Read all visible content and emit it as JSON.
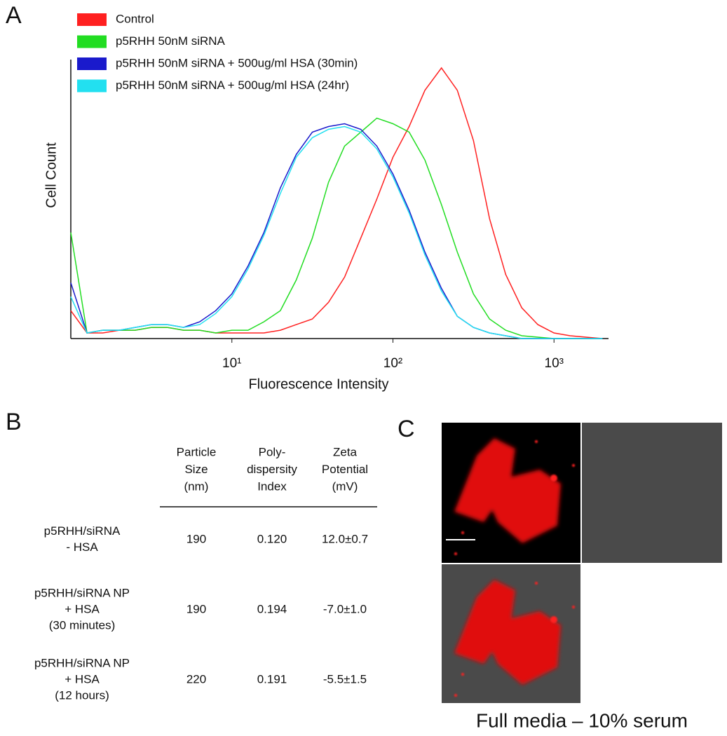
{
  "panels": {
    "a": "A",
    "b": "B",
    "c": "C"
  },
  "chart_data": {
    "type": "line",
    "x_label": "Fluorescence Intensity",
    "y_label": "Cell Count",
    "xscale": "log",
    "xlim": [
      1,
      2180
    ],
    "xticks": [
      {
        "value": 10,
        "label": "10¹"
      },
      {
        "value": 100,
        "label": "10²"
      },
      {
        "value": 1000,
        "label": "10³"
      }
    ],
    "ylim": [
      0,
      100
    ],
    "legend": "top-left",
    "x": [
      1,
      1.26,
      1.58,
      2,
      2.51,
      3.16,
      3.98,
      5.01,
      6.31,
      7.94,
      10,
      12.6,
      15.8,
      20,
      25.1,
      31.6,
      39.8,
      50.1,
      63.1,
      79.4,
      100,
      126,
      158,
      200,
      251,
      316,
      398,
      501,
      631,
      794,
      1000,
      1260,
      1580,
      2000
    ],
    "series": [
      {
        "name": "Control",
        "color": "#ff2020",
        "values": [
          10,
          2,
          2,
          3,
          3,
          4,
          4,
          3,
          3,
          2,
          2,
          2,
          2,
          3,
          5,
          7,
          13,
          22,
          36,
          50,
          65,
          76,
          89,
          97,
          89,
          71,
          43,
          23,
          11,
          5,
          2,
          1,
          0.5,
          0
        ]
      },
      {
        "name": "p5RHH 50nM siRNA",
        "color": "#22dd22",
        "values": [
          38,
          2,
          3,
          3,
          3,
          4,
          4,
          3,
          3,
          2,
          3,
          3,
          6,
          10,
          21,
          36,
          56,
          69,
          74,
          79,
          77,
          74,
          64,
          48,
          31,
          16,
          7,
          3,
          1,
          0.5,
          0,
          0,
          0,
          0
        ]
      },
      {
        "name": "p5RHH 50nM siRNA + 500ug/ml HSA (30min)",
        "color": "#1a1acc",
        "values": [
          20,
          2,
          3,
          3,
          4,
          5,
          5,
          4,
          6,
          10,
          16,
          26,
          38,
          54,
          66,
          74,
          76,
          77,
          75,
          69,
          59,
          46,
          31,
          18,
          8,
          4,
          2,
          1,
          0,
          0,
          0,
          0,
          0,
          0
        ]
      },
      {
        "name": "p5RHH 50nM siRNA + 500ug/ml HSA (24hr)",
        "color": "#22e0f0",
        "values": [
          15,
          2,
          3,
          3,
          4,
          5,
          5,
          4,
          5,
          9,
          15,
          25,
          37,
          52,
          65,
          72,
          75,
          76,
          74,
          68,
          58,
          45,
          30,
          17,
          8,
          4,
          2,
          1,
          0,
          0,
          0,
          0,
          0,
          0
        ]
      }
    ]
  },
  "table": {
    "header": [
      [
        "Particle",
        "Size",
        "(nm)"
      ],
      [
        "Poly-",
        "dispersity",
        "Index"
      ],
      [
        "Zeta",
        "Potential",
        "(mV)"
      ]
    ],
    "rows": [
      {
        "label": [
          "p5RHH/siRNA",
          "- HSA"
        ],
        "cells": [
          "190",
          "0.120",
          "12.0±0.7"
        ]
      },
      {
        "label": [
          "p5RHH/siRNA NP",
          "+ HSA",
          "(30 minutes)"
        ],
        "cells": [
          "190",
          "0.194",
          "-7.0±1.0"
        ]
      },
      {
        "label": [
          "p5RHH/siRNA NP",
          "+ HSA",
          "(12 hours)"
        ],
        "cells": [
          "220",
          "0.191",
          "-5.5±1.5"
        ]
      }
    ]
  },
  "images": {
    "caption": "Full media – 10% serum"
  }
}
